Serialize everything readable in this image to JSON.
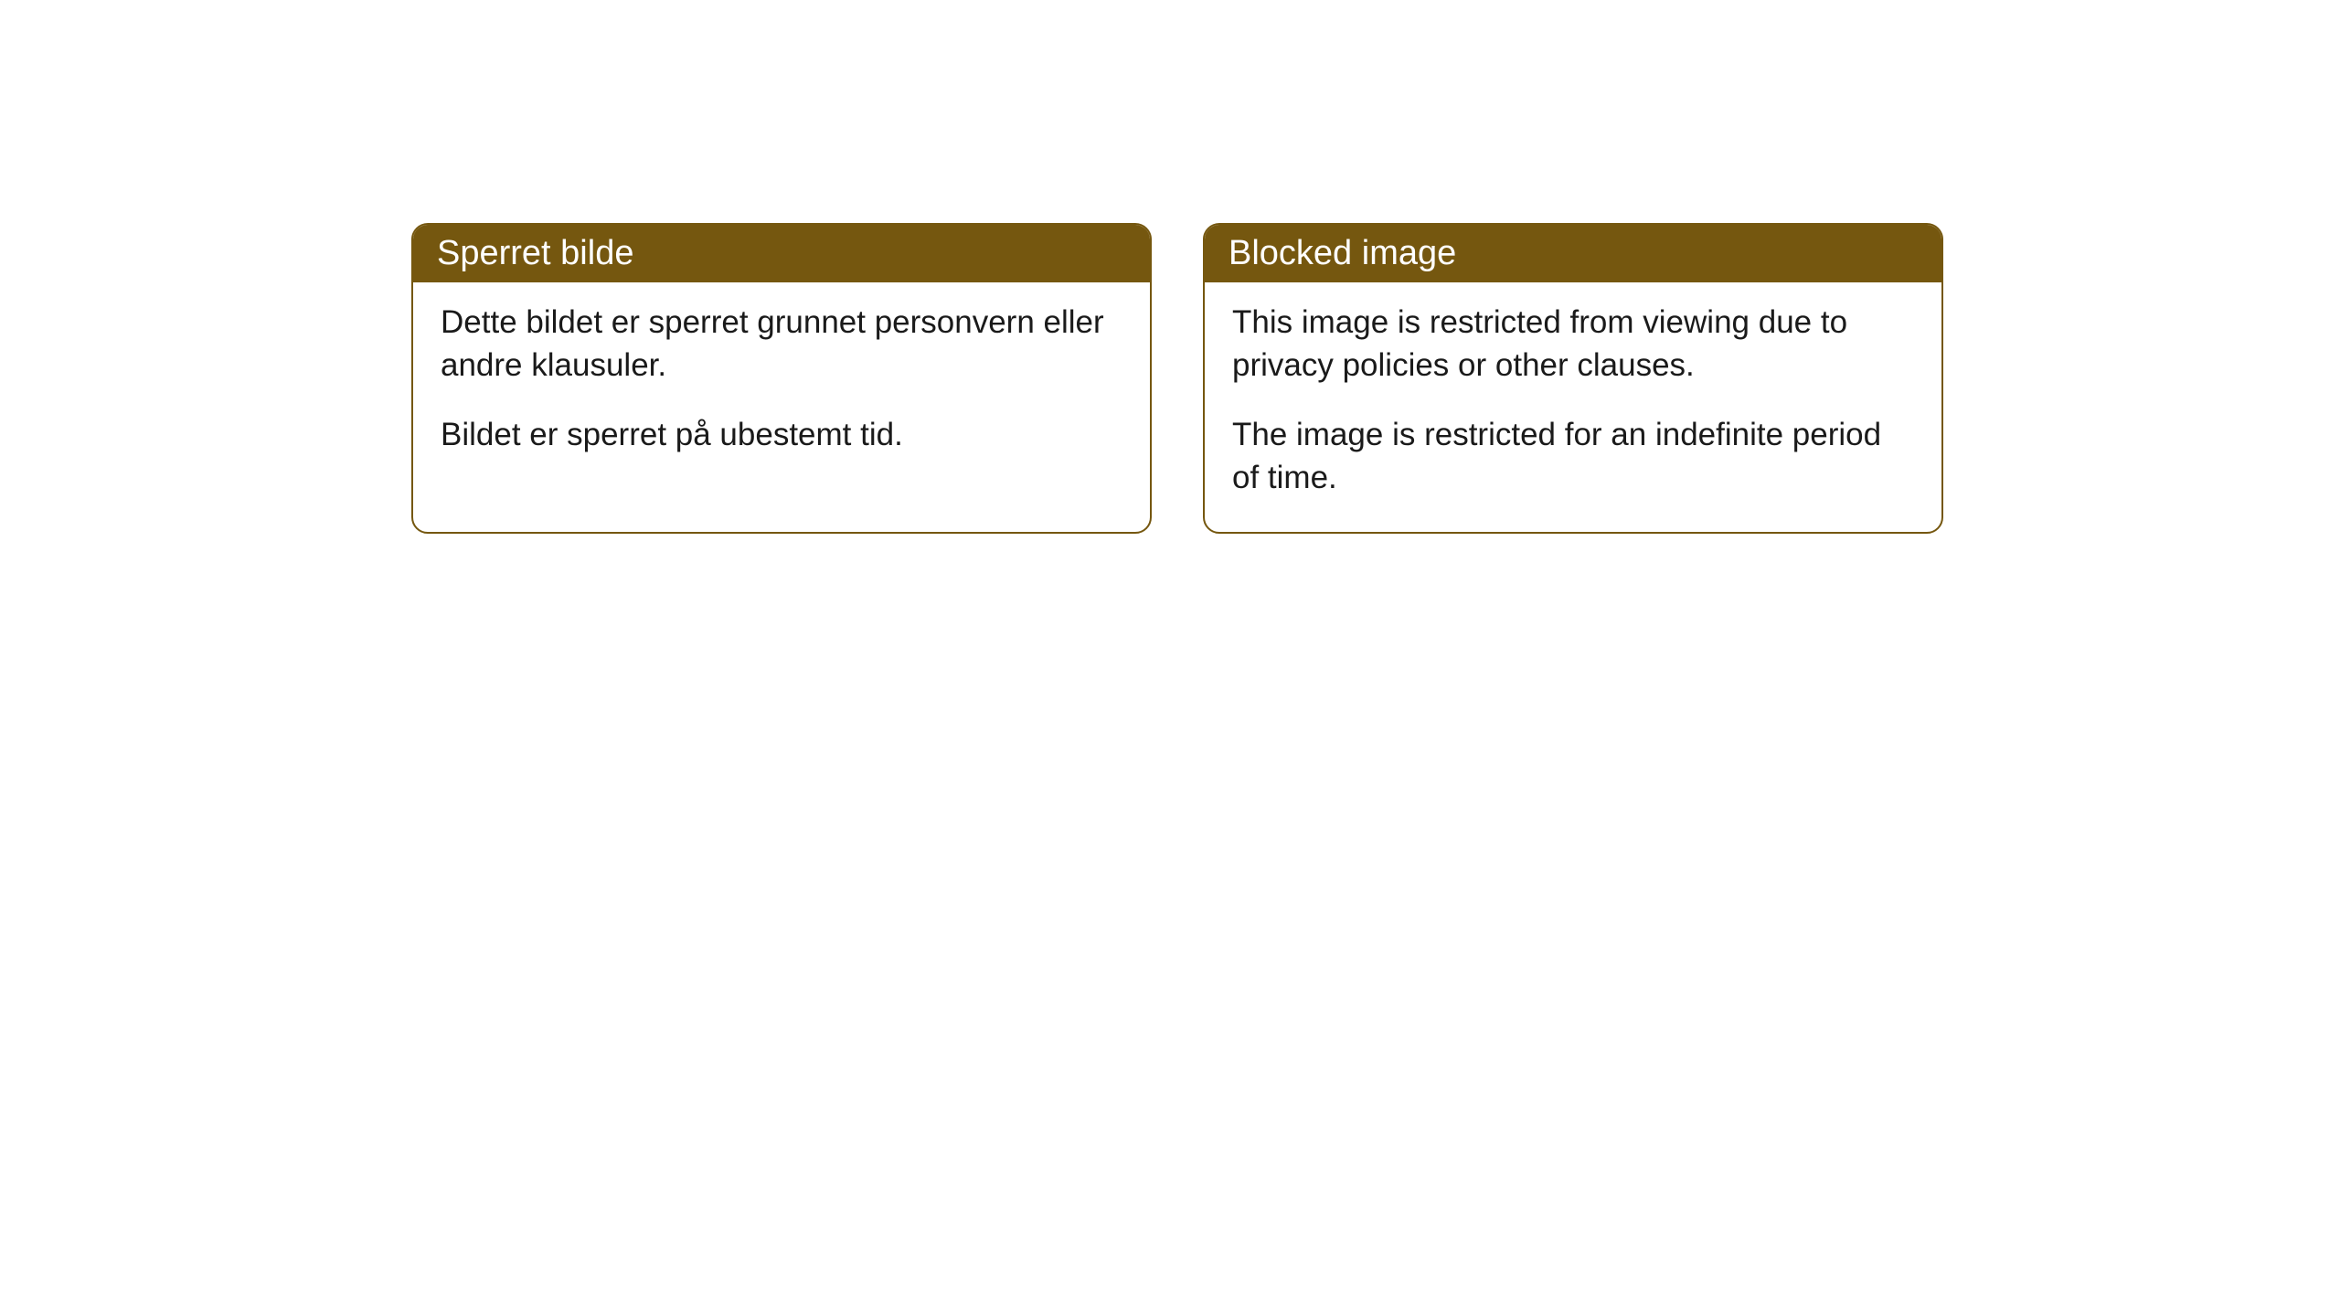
{
  "cards": [
    {
      "title": "Sperret bilde",
      "paragraph1": "Dette bildet er sperret grunnet personvern eller andre klausuler.",
      "paragraph2": "Bildet er sperret på ubestemt tid."
    },
    {
      "title": "Blocked image",
      "paragraph1": "This image is restricted from viewing due to privacy policies or other clauses.",
      "paragraph2": "The image is restricted for an indefinite period of time."
    }
  ],
  "styling": {
    "header_background_color": "#75570f",
    "header_text_color": "#ffffff",
    "border_color": "#75570f",
    "body_background_color": "#ffffff",
    "body_text_color": "#1a1a1a",
    "border_radius": 18,
    "header_font_size": 38,
    "body_font_size": 35
  }
}
